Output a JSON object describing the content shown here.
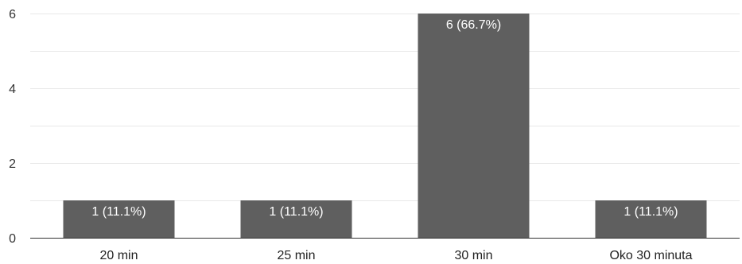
{
  "chart_data": {
    "type": "bar",
    "categories": [
      "20 min",
      "25 min",
      "30 min",
      "Oko 30 minuta"
    ],
    "values": [
      1,
      1,
      6,
      1
    ],
    "data_labels": [
      "1 (11.1%)",
      "1 (11.1%)",
      "6 (66.7%)",
      "1 (11.1%)"
    ],
    "y_ticks": [
      0,
      2,
      4,
      6
    ],
    "ylim": [
      0,
      6
    ],
    "grid": true,
    "bar_color": "#5f5f5f",
    "title": "",
    "xlabel": "",
    "ylabel": ""
  }
}
